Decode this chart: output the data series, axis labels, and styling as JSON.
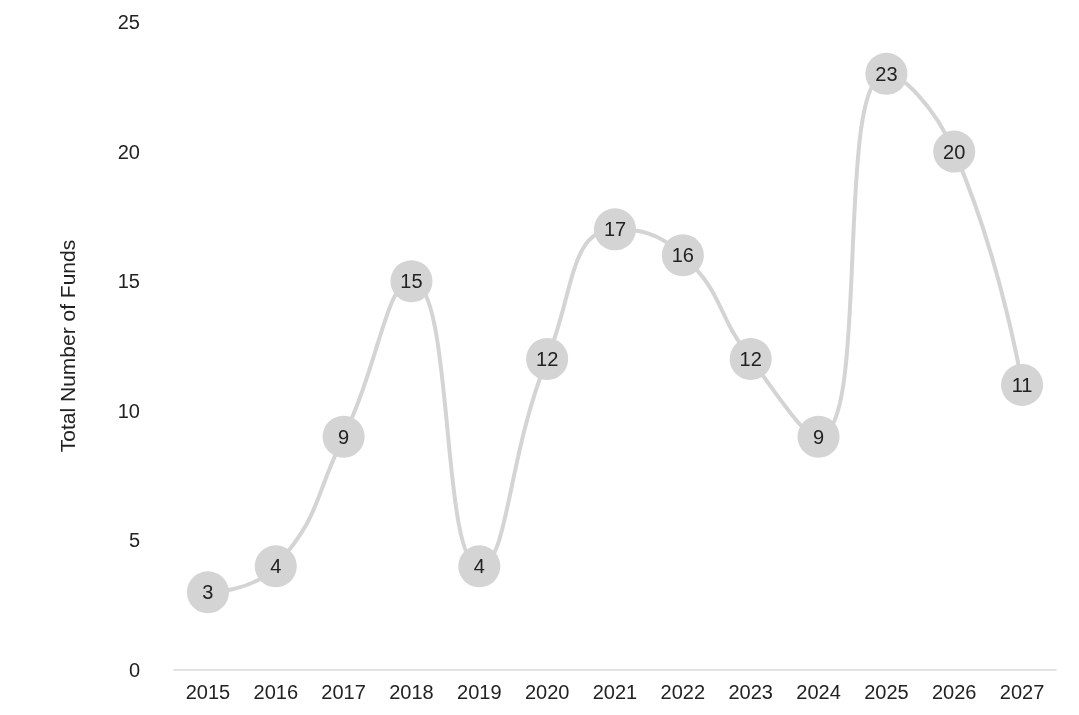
{
  "chart_data": {
    "type": "line",
    "ylabel": "Total Number of Funds",
    "categories": [
      "2015",
      "2016",
      "2017",
      "2018",
      "2019",
      "2020",
      "2021",
      "2022",
      "2023",
      "2024",
      "2025",
      "2026",
      "2027"
    ],
    "series": [
      {
        "color": "#d4d4d4",
        "values": [
          3,
          4,
          9,
          15,
          4,
          12,
          17,
          16,
          12,
          9,
          23,
          20,
          11
        ]
      }
    ],
    "ylim": [
      0,
      25
    ],
    "yticks": [
      0,
      5,
      10,
      15,
      20,
      25
    ],
    "grid": false,
    "marker": "circle",
    "line_style": "solid",
    "data_labels": true
  }
}
